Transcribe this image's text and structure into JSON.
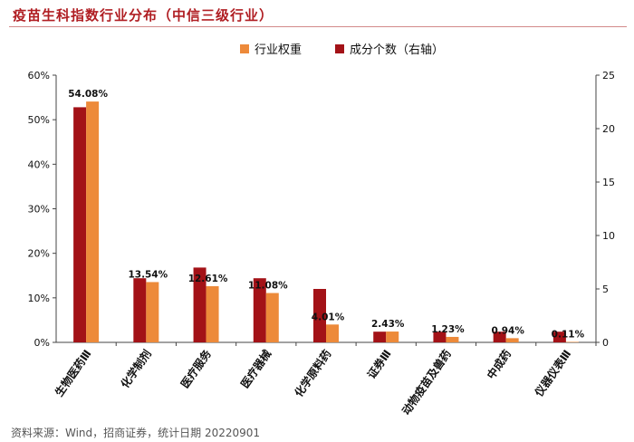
{
  "header": {
    "title": "疫苗生科指数行业分布（中信三级行业）"
  },
  "footer": {
    "source": "资料来源：Wind，招商证券，统计日期 20220901"
  },
  "colors": {
    "weight": "#ed8a3a",
    "count": "#a31217",
    "title": "#b01e23"
  },
  "chart_data": {
    "type": "bar",
    "title": "疫苗生科指数行业分布（中信三级行业）",
    "categories": [
      "生物医药Ⅲ",
      "化学制剂",
      "医疗服务",
      "医疗器械",
      "化学原料药",
      "证券Ⅲ",
      "动物疫苗及兽药",
      "中成药",
      "仪器仪表Ⅲ"
    ],
    "series": [
      {
        "name": "行业权重",
        "axis": "left",
        "unit": "%",
        "values": [
          54.08,
          13.54,
          12.61,
          11.08,
          4.01,
          2.43,
          1.23,
          0.94,
          0.11
        ],
        "labels": [
          "54.08%",
          "13.54%",
          "12.61%",
          "11.08%",
          "4.01%",
          "2.43%",
          "1.23%",
          "0.94%",
          "0.11%"
        ]
      },
      {
        "name": "成分个数（右轴）",
        "axis": "right",
        "values": [
          22,
          6,
          7,
          6,
          5,
          1,
          1,
          1,
          1
        ]
      }
    ],
    "left_axis": {
      "ylim": [
        0,
        60
      ],
      "ticks": [
        0,
        10,
        20,
        30,
        40,
        50,
        60
      ],
      "tick_labels": [
        "0%",
        "10%",
        "20%",
        "30%",
        "40%",
        "50%",
        "60%"
      ]
    },
    "right_axis": {
      "ylim": [
        0,
        25
      ],
      "ticks": [
        0,
        5,
        10,
        15,
        20,
        25
      ],
      "tick_labels": [
        "0",
        "5",
        "10",
        "15",
        "20",
        "25"
      ]
    },
    "legend": "top-center",
    "grid": false
  }
}
